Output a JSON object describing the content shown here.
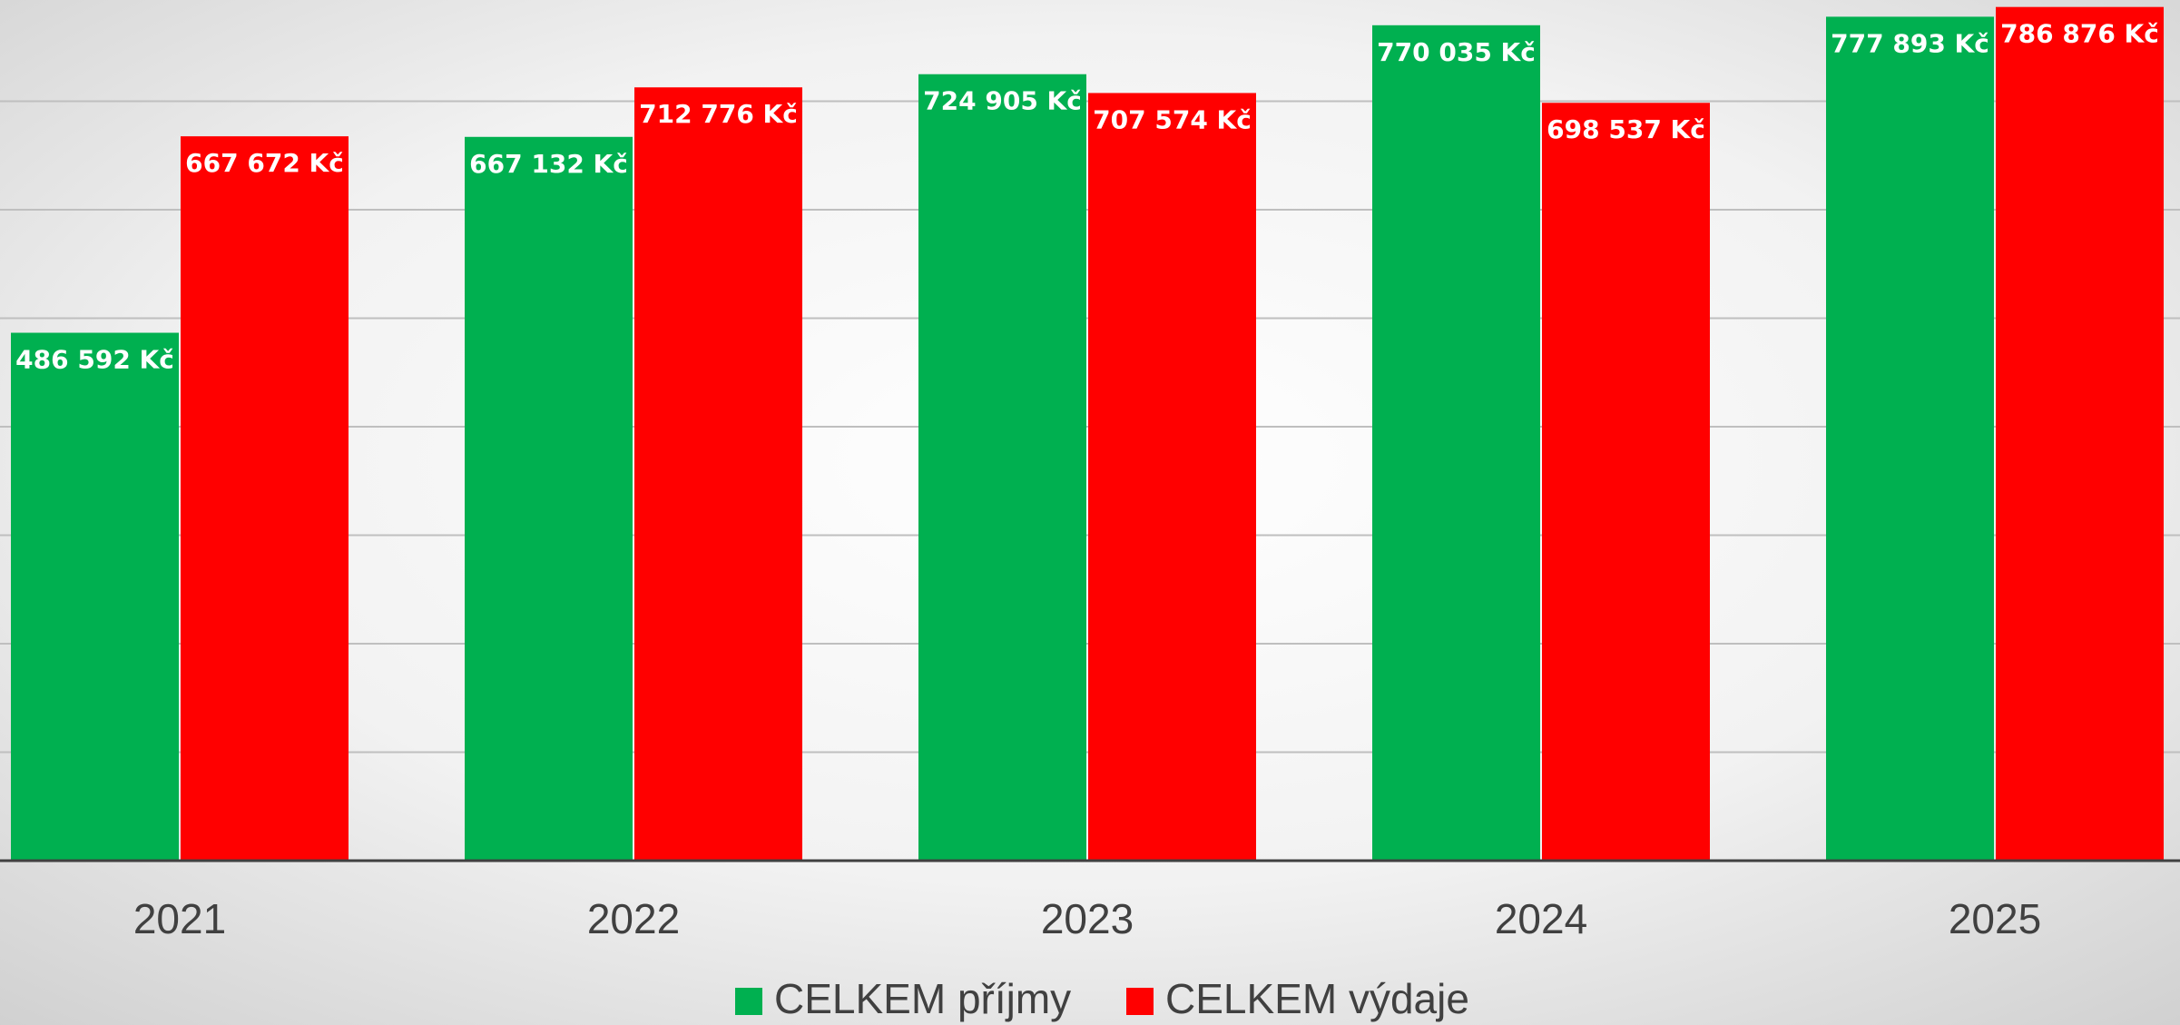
{
  "chart_data": {
    "type": "bar",
    "categories": [
      "2021",
      "2022",
      "2023",
      "2024",
      "2025"
    ],
    "series": [
      {
        "name": "CELKEM příjmy",
        "color": "#00b050",
        "values": [
          486592,
          667132,
          724905,
          770035,
          777893
        ],
        "value_labels": [
          "486 592 Kč",
          "667 132 Kč",
          "724 905 Kč",
          "770 035 Kč",
          "777 893 Kč"
        ]
      },
      {
        "name": "CELKEM výdaje",
        "color": "#ff0000",
        "values": [
          667672,
          712776,
          707574,
          698537,
          786876
        ],
        "value_labels": [
          "667 672 Kč",
          "712 776 Kč",
          "707 574 Kč",
          "698 537 Kč",
          "786 876 Kč"
        ]
      }
    ],
    "ylim": [
      0,
      800000
    ],
    "yticks": [
      0,
      100000,
      200000,
      300000,
      400000,
      500000,
      600000,
      700000
    ],
    "grid": true
  }
}
